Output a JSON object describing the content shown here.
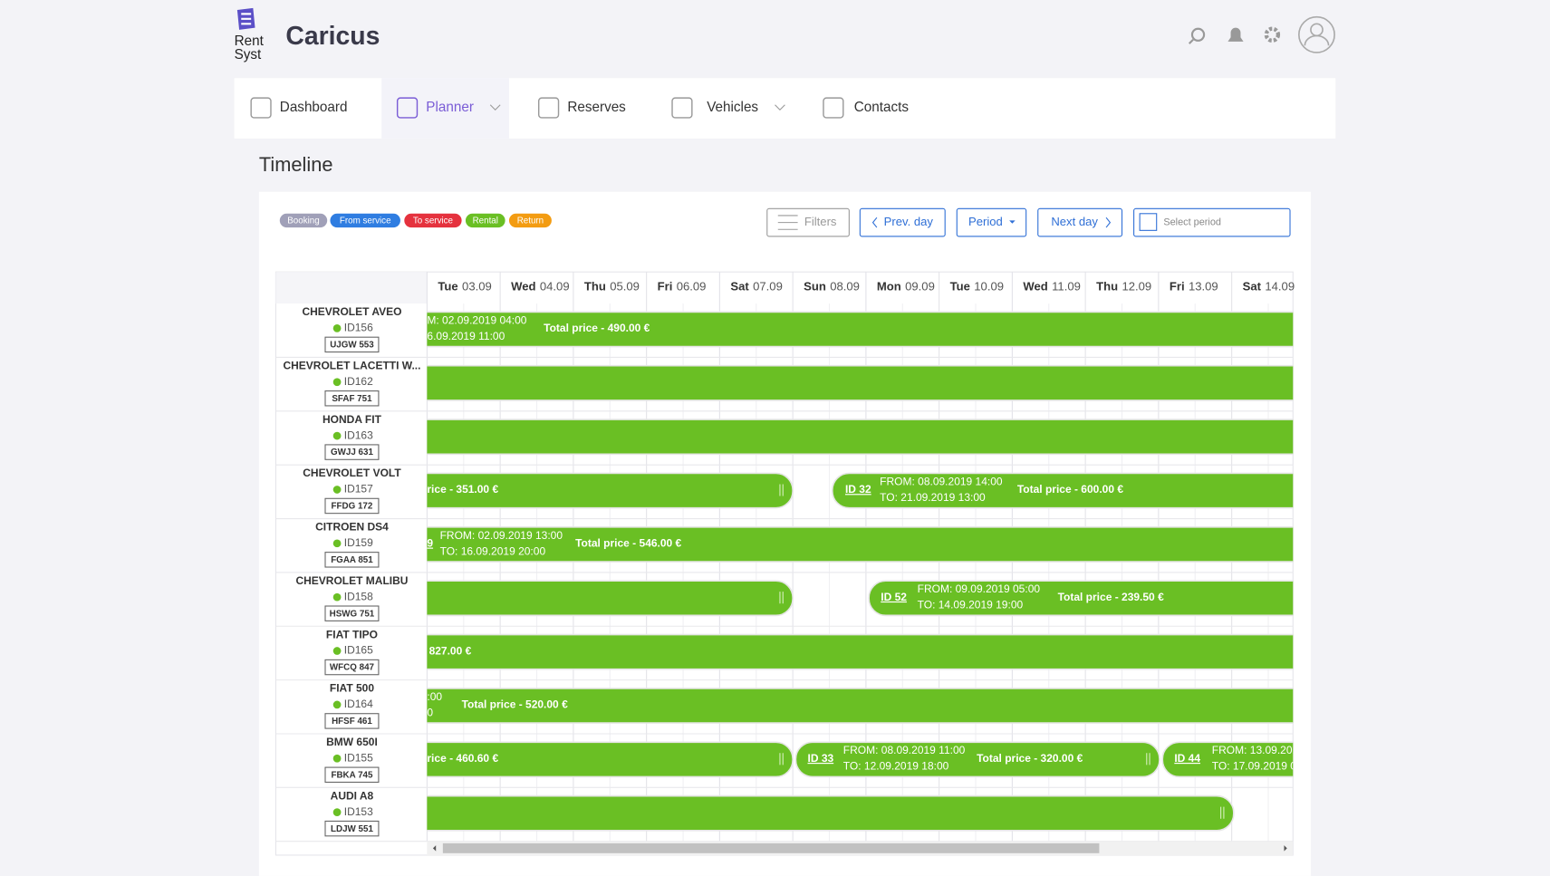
{
  "header": {
    "logo_top": "Rent",
    "logo_bottom": "Syst",
    "title": "Caricus"
  },
  "nav": [
    "Dashboard",
    "Planner",
    "Reserves",
    "Vehicles",
    "Contacts"
  ],
  "page_title": "Timeline",
  "legend": [
    "Booking",
    "From service",
    "To service",
    "Rental",
    "Return"
  ],
  "toolbar": {
    "filters": "Filters",
    "prev": "Prev. day",
    "period": "Period",
    "next": "Next day",
    "select": "Select period"
  },
  "days": [
    {
      "day": "Tue",
      "date": "03.09"
    },
    {
      "day": "Wed",
      "date": "04.09"
    },
    {
      "day": "Thu",
      "date": "05.09"
    },
    {
      "day": "Fri",
      "date": "06.09"
    },
    {
      "day": "Sat",
      "date": "07.09"
    },
    {
      "day": "Sun",
      "date": "08.09"
    },
    {
      "day": "Mon",
      "date": "09.09"
    },
    {
      "day": "Tue",
      "date": "10.09"
    },
    {
      "day": "Wed",
      "date": "11.09"
    },
    {
      "day": "Thu",
      "date": "12.09"
    },
    {
      "day": "Fri",
      "date": "13.09"
    },
    {
      "day": "Sat",
      "date": "14.09"
    }
  ],
  "vehicles": [
    {
      "name": "CHEVROLET AVEO",
      "id": "ID156",
      "plate": "UJGW 553",
      "bookings": [
        {
          "from": "M: 02.09.2019 04:00",
          "to": "6.09.2019 11:00",
          "price": "Total price - 490.00 €"
        }
      ]
    },
    {
      "name": "CHEVROLET LACETTI W...",
      "id": "ID162",
      "plate": "SFAF 751",
      "bookings": [
        {}
      ]
    },
    {
      "name": "HONDA FIT",
      "id": "ID163",
      "plate": "GWJJ 631",
      "bookings": [
        {}
      ]
    },
    {
      "name": "CHEVROLET VOLT",
      "id": "ID157",
      "plate": "FFDG 172",
      "bookings": [
        {
          "price": "rice - 351.00 €"
        },
        {
          "ref": "ID 32",
          "from": "FROM: 08.09.2019 14:00",
          "to": "TO: 21.09.2019 13:00",
          "price": "Total price - 600.00 €"
        }
      ]
    },
    {
      "name": "CITROEN DS4",
      "id": "ID159",
      "plate": "FGAA 851",
      "bookings": [
        {
          "ref": "9",
          "from": "FROM: 02.09.2019 13:00",
          "to": "TO: 16.09.2019 20:00",
          "price": "Total price - 546.00 €"
        }
      ]
    },
    {
      "name": "CHEVROLET MALIBU",
      "id": "ID158",
      "plate": "HSWG 751",
      "bookings": [
        {},
        {
          "ref": "ID 52",
          "from": "FROM: 09.09.2019 05:00",
          "to": "TO: 14.09.2019 19:00",
          "price": "Total price - 239.50 €"
        }
      ]
    },
    {
      "name": "FIAT TIPO",
      "id": "ID165",
      "plate": "WFCQ 847",
      "bookings": [
        {
          "price": "827.00 €"
        }
      ]
    },
    {
      "name": "FIAT 500",
      "id": "ID164",
      "plate": "HFSF 461",
      "bookings": [
        {
          "from": ":00",
          "to": "0",
          "price": "Total price - 520.00 €"
        }
      ]
    },
    {
      "name": "BMW 650I",
      "id": "ID155",
      "plate": "FBKA 745",
      "bookings": [
        {
          "price": "rice - 460.60 €"
        },
        {
          "ref": "ID 33",
          "from": "FROM: 08.09.2019 11:00",
          "to": "TO: 12.09.2019 18:00",
          "price": "Total price - 320.00 €"
        },
        {
          "ref": "ID 44",
          "from": "FROM: 13.09.201",
          "to": "TO: 17.09.2019 0"
        }
      ]
    },
    {
      "name": "AUDI A8",
      "id": "ID153",
      "plate": "LDJW 551",
      "bookings": [
        {}
      ]
    }
  ]
}
